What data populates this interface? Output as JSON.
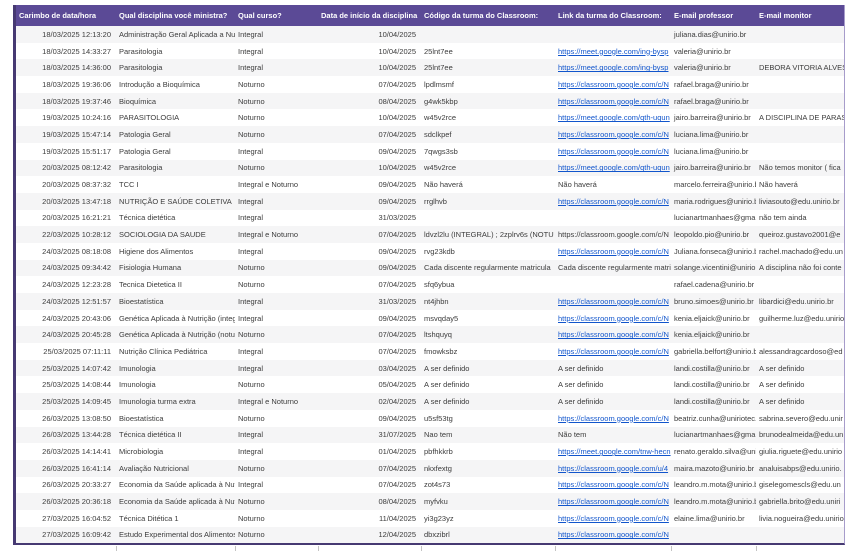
{
  "colors": {
    "header_bg": "#5b4a96",
    "border_dark": "#463972",
    "border_light": "#a79ccb",
    "link": "#1155cc"
  },
  "table": {
    "columns": [
      {
        "key": "timestamp",
        "label": "Carimbo de data/hora"
      },
      {
        "key": "disciplina",
        "label": "Qual disciplina você ministra?"
      },
      {
        "key": "curso",
        "label": "Qual curso?"
      },
      {
        "key": "data-inicio",
        "label": "Data de início da disciplina"
      },
      {
        "key": "codigo",
        "label": "Código da turma do Classroom:"
      },
      {
        "key": "link",
        "label": "Link da turma do Classroom:"
      },
      {
        "key": "email-professor",
        "label": "E-mail professor"
      },
      {
        "key": "email-monitor",
        "label": "E-mail monitor"
      }
    ],
    "rows": [
      {
        "cells": [
          "18/03/2025 12:13:20",
          "Administração Geral Aplicada a Nutr",
          "Integral",
          "10/04/2025",
          "",
          "",
          "juliana.dias@unirio.br",
          ""
        ],
        "link": false
      },
      {
        "cells": [
          "18/03/2025 14:33:27",
          "Parasitologia",
          "Integral",
          "10/04/2025",
          "25lnt7ee",
          "https://meet.google.com/ing-bysp",
          "valeria@unirio.br",
          ""
        ],
        "link": true
      },
      {
        "cells": [
          "18/03/2025 14:36:00",
          "Parasitologia",
          "Integral",
          "10/04/2025",
          "25lnt7ee",
          "https://meet.google.com/ing-bysp",
          "valeria@unirio.br",
          "DEBORA VITORIA ALVES"
        ],
        "link": true
      },
      {
        "cells": [
          "18/03/2025 19:36:06",
          "Introdução a Bioquímica",
          "Noturno",
          "07/04/2025",
          "lpdlmsmf",
          "https://classroom.google.com/c/N",
          "rafael.braga@unirio.br",
          ""
        ],
        "link": true
      },
      {
        "cells": [
          "18/03/2025 19:37:46",
          "Bioquímica",
          "Noturno",
          "08/04/2025",
          "g4wk5kbp",
          "https://classroom.google.com/c/N",
          "rafael.braga@unirio.br",
          ""
        ],
        "link": true
      },
      {
        "cells": [
          "19/03/2025 10:24:16",
          "PARASITOLOGIA",
          "Noturno",
          "10/04/2025",
          "w45v2rce",
          "https://meet.google.com/qth-uqun",
          "jairo.barreira@unirio.br",
          "A DISCIPLINA DE PARAS"
        ],
        "link": true
      },
      {
        "cells": [
          "19/03/2025 15:47:14",
          "Patologia Geral",
          "Noturno",
          "07/04/2025",
          "sdclkpef",
          "https://classroom.google.com/c/N",
          "luciana.lima@unirio.br",
          ""
        ],
        "link": true
      },
      {
        "cells": [
          "19/03/2025 15:51:17",
          "Patologia Geral",
          "Integral",
          "09/04/2025",
          "7qwgs3sb",
          "https://classroom.google.com/c/N",
          "luciana.lima@unirio.br",
          ""
        ],
        "link": true
      },
      {
        "cells": [
          "20/03/2025 08:12:42",
          "Parasitologia",
          "Noturno",
          "10/04/2025",
          "w45v2rce",
          "https://meet.google.com/qth-uqun",
          "jairo.barreira@unirio.br",
          "Não temos monitor ( fica"
        ],
        "link": true
      },
      {
        "cells": [
          "20/03/2025 08:37:32",
          "TCC I",
          "Integral e Noturno",
          "09/04/2025",
          "Não haverá",
          "Não haverá",
          "marcelo.ferreira@unirio.b",
          "Não haverá"
        ],
        "link": false
      },
      {
        "cells": [
          "20/03/2025 13:47:18",
          "NUTRIÇÃO E SAÚDE COLETIVA",
          "Integral",
          "09/04/2025",
          "rrglhvb",
          "https://classroom.google.com/c/N",
          "maria.rodrigues@unirio.b",
          "liviasouto@edu.unirio.br"
        ],
        "link": true
      },
      {
        "cells": [
          "20/03/2025 16:21:21",
          "Técnica dietética",
          "Integral",
          "31/03/2025",
          "",
          "",
          "lucianartmanhaes@gma",
          "não tem ainda"
        ],
        "link": false
      },
      {
        "cells": [
          "22/03/2025 10:28:12",
          "SOCIOLOGIA DA SAUDE",
          "Integral e Noturno",
          "07/04/2025",
          "ldvzl2lu (INTEGRAL) ; 2zplrv6s (NOTU",
          "https://classroom.google.com/c/N",
          "leopoldo.pio@unirio.br",
          "queiroz.gustavo2001@e"
        ],
        "link": false
      },
      {
        "cells": [
          "24/03/2025 08:18:08",
          "Higiene dos Alimentos",
          "Integral",
          "09/04/2025",
          "rvg23kdb",
          "https://classroom.google.com/c/N",
          "Juliana.fonseca@unirio.b",
          "rachel.machado@edu.un"
        ],
        "link": true
      },
      {
        "cells": [
          "24/03/2025 09:34:42",
          "Fisiologia Humana",
          "Noturno",
          "09/04/2025",
          "Cada discente regularmente matricula",
          "Cada discente regularmente matric",
          "solange.vicentini@unirio",
          "A disciplina não foi conte"
        ],
        "link": false
      },
      {
        "cells": [
          "24/03/2025 12:23:28",
          "Tecnica Dietetica II",
          "Noturno",
          "07/04/2025",
          "sfq6ybua",
          "",
          "rafael.cadena@unirio.br",
          ""
        ],
        "link": false
      },
      {
        "cells": [
          "24/03/2025 12:51:57",
          "Bioestatística",
          "Integral",
          "31/03/2025",
          "nt4jhbn",
          "https://classroom.google.com/c/N",
          "bruno.simoes@unirio.br",
          "libardici@edu.unirio.br"
        ],
        "link": true
      },
      {
        "cells": [
          "24/03/2025 20:43:06",
          "Genética Aplicada à Nutrição (integ",
          "Integral",
          "09/04/2025",
          "msvqday5",
          "https://classroom.google.com/c/N",
          "kenia.eljaick@unirio.br",
          "guilherme.luz@edu.unirio"
        ],
        "link": true
      },
      {
        "cells": [
          "24/03/2025 20:45:28",
          "Genética Aplicada à Nutrição (notur",
          "Noturno",
          "07/04/2025",
          "ltshquyq",
          "https://classroom.google.com/c/N",
          "kenia.eljaick@unirio.br",
          ""
        ],
        "link": true
      },
      {
        "cells": [
          "25/03/2025 07:11:11",
          "Nutrição Clínica Pediátrica",
          "Integral",
          "07/04/2025",
          "fmowksbz",
          "https://classroom.google.com/c/N",
          "gabriella.belfort@unirio.b",
          "alessandragcardoso@ed"
        ],
        "link": true
      },
      {
        "cells": [
          "25/03/2025 14:07:42",
          "Imunologia",
          "Integral",
          "03/04/2025",
          "A ser definido",
          "A ser definido",
          "landi.costilla@unirio.br",
          "A ser definido"
        ],
        "link": false
      },
      {
        "cells": [
          "25/03/2025 14:08:44",
          "Imunologia",
          "Noturno",
          "05/04/2025",
          "A ser definido",
          "A ser definido",
          "landi.costilla@unirio.br",
          "A ser definido"
        ],
        "link": false
      },
      {
        "cells": [
          "25/03/2025 14:09:45",
          "Imunologia  turma extra",
          "Integral e Noturno",
          "02/04/2025",
          "A ser definido",
          "A ser definido",
          "landi.costilla@unirio.br",
          "A ser definido"
        ],
        "link": false
      },
      {
        "cells": [
          "26/03/2025 13:08:50",
          "Bioestatística",
          "Noturno",
          "09/04/2025",
          "u5sf53tg",
          "https://classroom.google.com/c/N",
          "beatriz.cunha@uniriotec.",
          "sabrina.severo@edu.unir"
        ],
        "link": true
      },
      {
        "cells": [
          "26/03/2025 13:44:28",
          "Técnica dietética II",
          "Integral",
          "31/07/2025",
          "Nao tem",
          "Não tem",
          "lucianartmanhaes@gma",
          "brunodealmeida@edu.un"
        ],
        "link": false
      },
      {
        "cells": [
          "26/03/2025 14:14:41",
          "Microbiologia",
          "Integral",
          "01/04/2025",
          "pbfhkkrb",
          "https://meet.google.com/tnw-hecn",
          "renato.geraldo.silva@uni",
          "giulia.riguete@edu.unirio"
        ],
        "link": true
      },
      {
        "cells": [
          "26/03/2025 16:41:14",
          "Avaliação Nutricional",
          "Noturno",
          "07/04/2025",
          "nkxfextg",
          "https://classroom.google.com/u/4",
          "maira.mazoto@unirio.br",
          "analuisabps@edu.unirio."
        ],
        "link": true
      },
      {
        "cells": [
          "26/03/2025 20:33:27",
          "Economia da Saúde aplicada à Nutr",
          "Integral",
          "07/04/2025",
          "zot4s73",
          "https://classroom.google.com/c/N",
          "leandro.m.mota@unirio.b",
          "giselegomescls@edu.un"
        ],
        "link": true
      },
      {
        "cells": [
          "26/03/2025 20:36:18",
          "Economia da Saúde aplicada à Nutr",
          "Noturno",
          "08/04/2025",
          "myfvku",
          "https://classroom.google.com/c/N",
          "leandro.m.mota@unirio.b",
          "gabriella.brito@edu.uniri"
        ],
        "link": true
      },
      {
        "cells": [
          "27/03/2025 16:04:52",
          "Técnica Ditética 1",
          "Noturno",
          "11/04/2025",
          "yi3g23yz",
          "https://classroom.google.com/c/N",
          "elaine.lima@unirio.br",
          "livia.nogueira@edu.unirio"
        ],
        "link": true
      },
      {
        "cells": [
          "27/03/2025 16:09:42",
          "Estudo Experimental dos Alimentos",
          "Noturno",
          "12/04/2025",
          "dbxzibrl",
          "https://classroom.google.com/c/N",
          "",
          ""
        ],
        "link": true
      }
    ]
  }
}
